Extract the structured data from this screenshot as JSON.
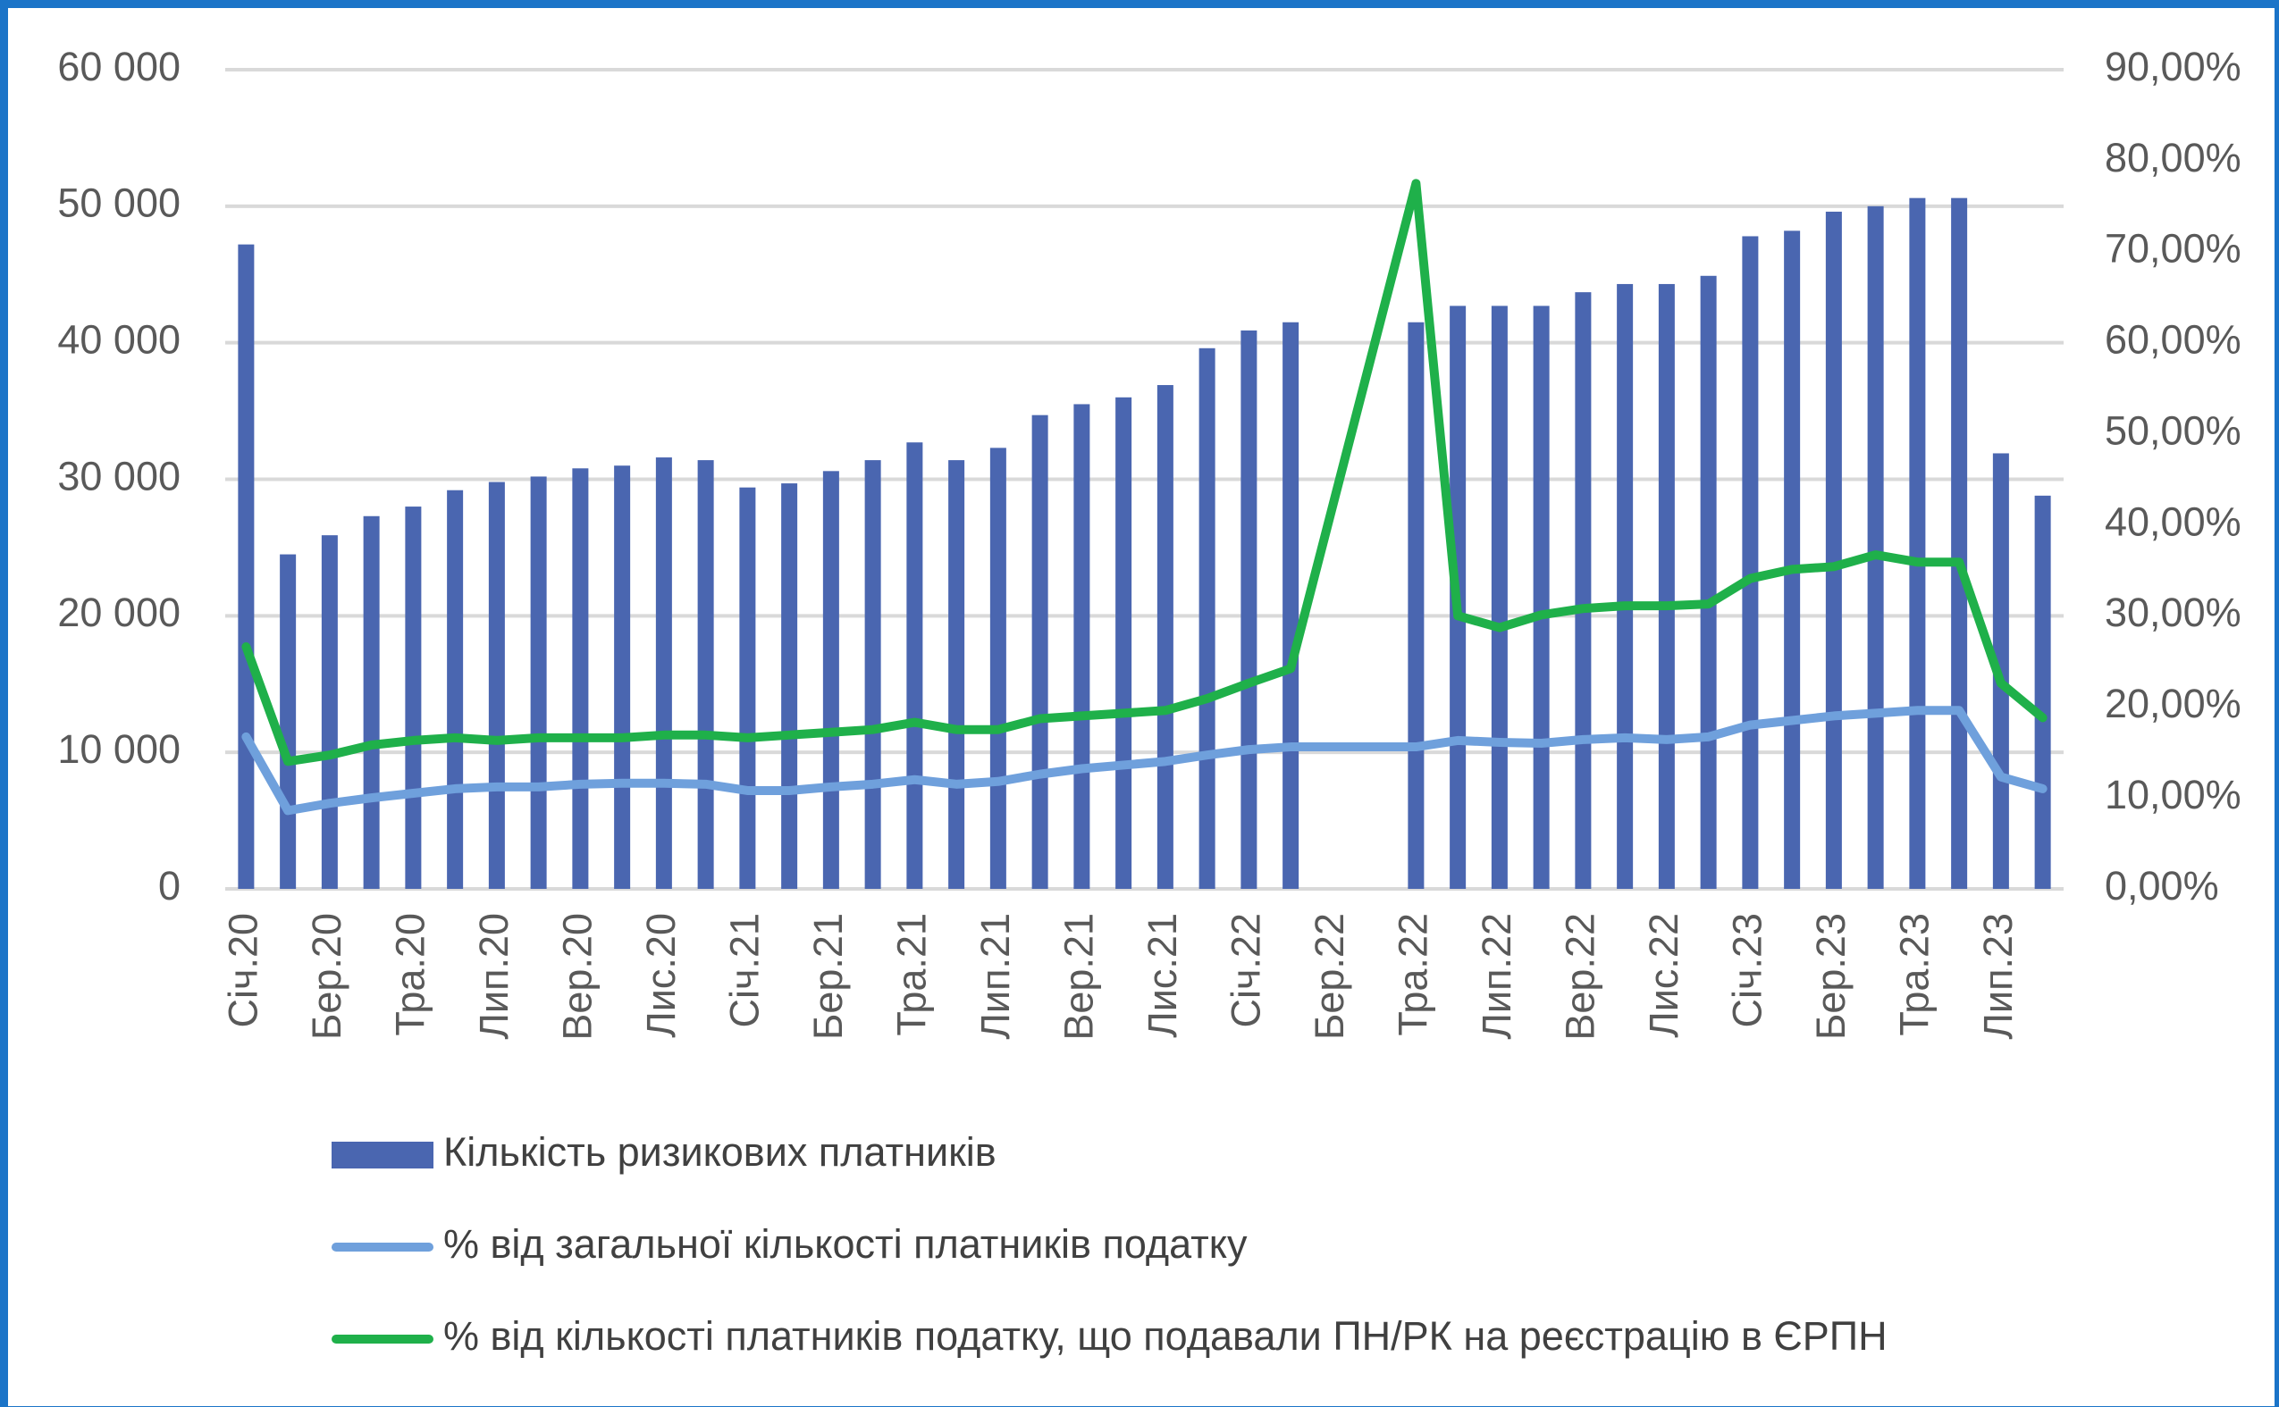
{
  "chart_data": {
    "type": "combo",
    "categories": [
      "Січ.20",
      null,
      "Бер.20",
      null,
      "Тра.20",
      null,
      "Лип.20",
      null,
      "Вер.20",
      null,
      "Лис.20",
      null,
      "Січ.21",
      null,
      "Бер.21",
      null,
      "Тра.21",
      null,
      "Лип.21",
      null,
      "Вер.21",
      null,
      "Лис.21",
      null,
      "Січ.22",
      null,
      "Бер.22",
      null,
      "Тра.22",
      null,
      "Лип.22",
      null,
      "Вер.22",
      null,
      "Лис.22",
      null,
      "Січ.23",
      null,
      "Бер.23",
      null,
      "Тра.23",
      null,
      "Лип.23",
      null
    ],
    "series": [
      {
        "name": "Кількість ризикових платників",
        "type": "bar",
        "color": "#4a66b0",
        "values": [
          47200,
          24500,
          25900,
          27300,
          28000,
          29200,
          29800,
          30200,
          30800,
          31000,
          31600,
          31400,
          29400,
          29700,
          30600,
          31400,
          32700,
          31400,
          32300,
          34700,
          35500,
          36000,
          36900,
          39600,
          40900,
          41500,
          null,
          null,
          41500,
          42700,
          42700,
          42700,
          43700,
          44300,
          44300,
          44900,
          47800,
          48200,
          49600,
          50000,
          50600,
          50600,
          31900,
          28800
        ]
      },
      {
        "name": "% від загальної кількості платників податку",
        "type": "line",
        "axis": "y2",
        "color": "#6fa0dc",
        "values": [
          16.7,
          8.6,
          9.4,
          10,
          10.5,
          11,
          11.2,
          11.2,
          11.5,
          11.6,
          11.6,
          11.5,
          10.8,
          10.8,
          11.2,
          11.5,
          12,
          11.5,
          11.8,
          12.6,
          13.2,
          13.6,
          14,
          14.7,
          15.3,
          15.6,
          null,
          null,
          15.6,
          16.3,
          16.1,
          16,
          16.4,
          16.6,
          16.4,
          16.7,
          18,
          18.5,
          19,
          19.3,
          19.6,
          19.6,
          12.3,
          11
        ]
      },
      {
        "name": "% від кількості платників податку, що подавали ПН/РК на реєстрацію в ЄРПН",
        "type": "line",
        "axis": "y2",
        "color": "#1fb04a",
        "values": [
          26.6,
          14,
          14.7,
          15.8,
          16.3,
          16.6,
          16.3,
          16.6,
          16.6,
          16.6,
          16.9,
          16.9,
          16.6,
          16.9,
          17.2,
          17.5,
          18.3,
          17.5,
          17.5,
          18.7,
          19,
          19.3,
          19.6,
          20.9,
          22.6,
          24.2,
          null,
          null,
          77.5,
          30,
          28.7,
          30.1,
          30.8,
          31.1,
          31.1,
          31.3,
          34.1,
          35.1,
          35.4,
          36.7,
          35.9,
          35.9,
          22.6,
          18.8
        ]
      }
    ],
    "connect_gaps": true,
    "ylim": [
      0,
      60000
    ],
    "yticks": [
      0,
      {
        "value": 10000,
        "label": "10 000"
      },
      {
        "value": 20000,
        "label": "20 000"
      },
      {
        "value": 30000,
        "label": "30 000"
      },
      {
        "value": 40000,
        "label": "40 000"
      },
      {
        "value": 50000,
        "label": "50 000"
      },
      {
        "value": 60000,
        "label": "60 000"
      }
    ],
    "y2lim": [
      0,
      90
    ],
    "y2ticks": [
      {
        "value": 0,
        "label": "0,00%"
      },
      {
        "value": 10,
        "label": "10,00%"
      },
      {
        "value": 20,
        "label": "20,00%"
      },
      {
        "value": 30,
        "label": "30,00%"
      },
      {
        "value": 40,
        "label": "40,00%"
      },
      {
        "value": 50,
        "label": "50,00%"
      },
      {
        "value": 60,
        "label": "60,00%"
      },
      {
        "value": 70,
        "label": "70,00%"
      },
      {
        "value": 80,
        "label": "80,00%"
      },
      {
        "value": 90,
        "label": "90,00%"
      }
    ],
    "grid": true,
    "legend": "bottom"
  }
}
